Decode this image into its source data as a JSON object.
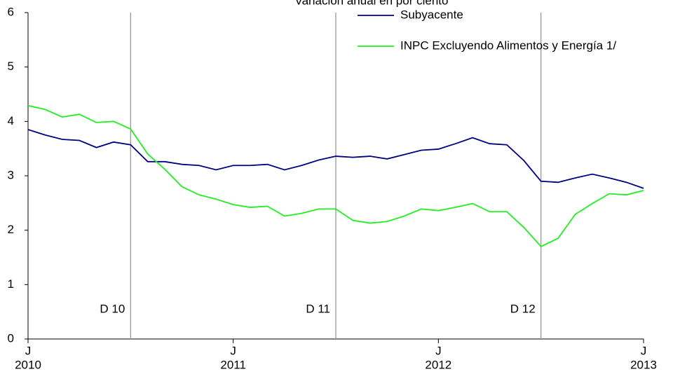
{
  "chart_data": {
    "type": "line",
    "title": "Variación anual en por ciento",
    "categories": [
      "J",
      null,
      null,
      null,
      null,
      null,
      null,
      null,
      null,
      null,
      null,
      null,
      "J",
      null,
      null,
      null,
      null,
      null,
      null,
      null,
      null,
      null,
      null,
      null,
      "J",
      null,
      null,
      null,
      null,
      null,
      null,
      null,
      null,
      null,
      null,
      null,
      "J"
    ],
    "x_group_labels": [
      "2010",
      "2011",
      "2012",
      "2013"
    ],
    "series": [
      {
        "name": "Subyacente",
        "color": "#000080",
        "values": [
          3.85,
          3.75,
          3.67,
          3.65,
          3.52,
          3.62,
          3.57,
          3.26,
          3.26,
          3.21,
          3.19,
          3.11,
          3.19,
          3.19,
          3.21,
          3.11,
          3.19,
          3.29,
          3.36,
          3.34,
          3.36,
          3.31,
          3.39,
          3.47,
          3.49,
          3.59,
          3.7,
          3.59,
          3.57,
          3.28,
          2.9,
          2.88,
          2.96,
          3.03,
          2.96,
          2.88,
          2.77
        ]
      },
      {
        "name": "INPC Excluyendo Alimentos y Energía 1/",
        "color": "#22ee22",
        "values": [
          4.29,
          4.22,
          4.08,
          4.13,
          3.98,
          4.0,
          3.86,
          3.4,
          3.12,
          2.8,
          2.65,
          2.57,
          2.47,
          2.42,
          2.44,
          2.26,
          2.31,
          2.39,
          2.39,
          2.18,
          2.13,
          2.16,
          2.26,
          2.39,
          2.36,
          2.42,
          2.49,
          2.34,
          2.34,
          2.05,
          1.7,
          1.85,
          2.29,
          2.49,
          2.67,
          2.65,
          2.73
        ]
      }
    ],
    "annotations": [
      {
        "x": 6,
        "label": "D 10"
      },
      {
        "x": 18,
        "label": "D 11"
      },
      {
        "x": 30,
        "label": "D 12"
      }
    ],
    "ylim": [
      0,
      6
    ],
    "yticks": [
      0,
      1,
      2,
      3,
      4,
      5,
      6
    ],
    "legend": "upper right"
  }
}
